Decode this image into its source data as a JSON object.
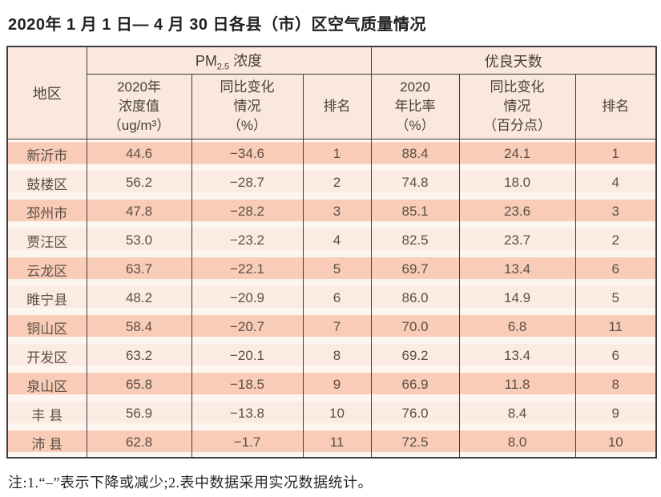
{
  "title": "2020年 1 月 1 日— 4 月 30 日各县（市）区空气质量情况",
  "table": {
    "group_headers": {
      "region": "地区",
      "pm25_prefix": "PM",
      "pm25_sub": "2.5",
      "pm25_suffix": " 浓度",
      "good_days": "优良天数"
    },
    "sub_headers": {
      "pm_value": "2020年\n浓度值\n（ug/m³）",
      "pm_change": "同比变化\n情况\n（%）",
      "pm_rank": "排名",
      "gd_ratio": "2020\n年比率\n（%）",
      "gd_change": "同比变化\n情况\n（百分点）",
      "gd_rank": "排名"
    },
    "rows": [
      {
        "region": "新沂市",
        "pm_value": "44.6",
        "pm_change": "−34.6",
        "pm_rank": "1",
        "gd_ratio": "88.4",
        "gd_change": "24.1",
        "gd_rank": "1"
      },
      {
        "region": "鼓楼区",
        "pm_value": "56.2",
        "pm_change": "−28.7",
        "pm_rank": "2",
        "gd_ratio": "74.8",
        "gd_change": "18.0",
        "gd_rank": "4"
      },
      {
        "region": "邳州市",
        "pm_value": "47.8",
        "pm_change": "−28.2",
        "pm_rank": "3",
        "gd_ratio": "85.1",
        "gd_change": "23.6",
        "gd_rank": "3"
      },
      {
        "region": "贾汪区",
        "pm_value": "53.0",
        "pm_change": "−23.2",
        "pm_rank": "4",
        "gd_ratio": "82.5",
        "gd_change": "23.7",
        "gd_rank": "2"
      },
      {
        "region": "云龙区",
        "pm_value": "63.7",
        "pm_change": "−22.1",
        "pm_rank": "5",
        "gd_ratio": "69.7",
        "gd_change": "13.4",
        "gd_rank": "6"
      },
      {
        "region": "睢宁县",
        "pm_value": "48.2",
        "pm_change": "−20.9",
        "pm_rank": "6",
        "gd_ratio": "86.0",
        "gd_change": "14.9",
        "gd_rank": "5"
      },
      {
        "region": "铜山区",
        "pm_value": "58.4",
        "pm_change": "−20.7",
        "pm_rank": "7",
        "gd_ratio": "70.0",
        "gd_change": "6.8",
        "gd_rank": "11"
      },
      {
        "region": "开发区",
        "pm_value": "63.2",
        "pm_change": "−20.1",
        "pm_rank": "8",
        "gd_ratio": "69.2",
        "gd_change": "13.4",
        "gd_rank": "6"
      },
      {
        "region": "泉山区",
        "pm_value": "65.8",
        "pm_change": "−18.5",
        "pm_rank": "9",
        "gd_ratio": "66.9",
        "gd_change": "11.8",
        "gd_rank": "8"
      },
      {
        "region": "丰 县",
        "pm_value": "56.9",
        "pm_change": "−13.8",
        "pm_rank": "10",
        "gd_ratio": "76.0",
        "gd_change": "8.4",
        "gd_rank": "9"
      },
      {
        "region": "沛 县",
        "pm_value": "62.8",
        "pm_change": "−1.7",
        "pm_rank": "11",
        "gd_ratio": "72.5",
        "gd_change": "8.0",
        "gd_rank": "10"
      }
    ]
  },
  "footnote": "注:1.“–”表示下降或减少;2.表中数据采用实况数据统计。",
  "colors": {
    "border": "#3e3e3e",
    "header_bg": "#fbe8dc",
    "header_text": "#45403c",
    "row_odd": "#f8ccb6",
    "row_even": "#fcebe2",
    "row_gap": "#fdf5ef",
    "cell_text": "#5c4f48",
    "title_text": "#1f1f1f"
  }
}
